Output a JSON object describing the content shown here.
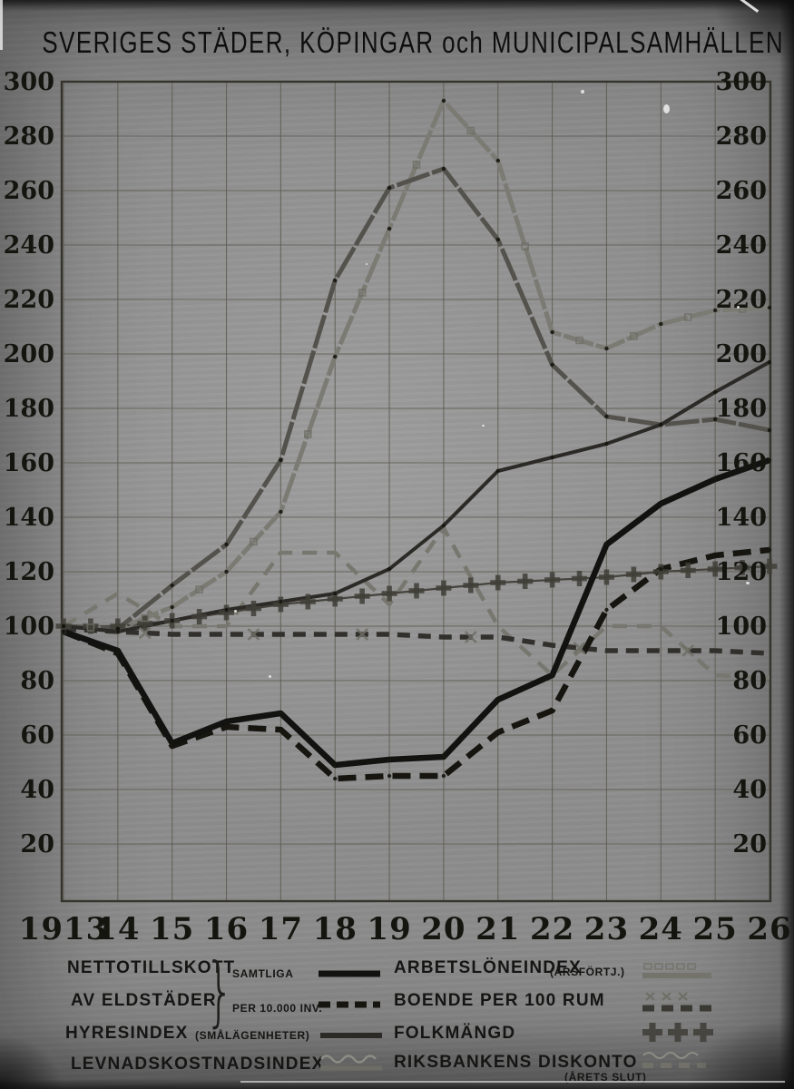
{
  "title": "SVERIGES STÄDER, KÖPINGAR och MUNICIPALSAMHÄLLEN",
  "chart_data": {
    "type": "line",
    "title": "SVERIGES STÄDER, KÖPINGAR och MUNICIPALSAMHÄLLEN",
    "x_labels": [
      "1913",
      "14",
      "15",
      "16",
      "17",
      "18",
      "19",
      "20",
      "21",
      "22",
      "23",
      "24",
      "25",
      "26"
    ],
    "y_ticks": [
      300,
      280,
      260,
      240,
      220,
      200,
      180,
      160,
      140,
      120,
      100,
      80,
      60,
      40,
      20
    ],
    "ylim": [
      0,
      300
    ],
    "grid": "on",
    "index_base": 100,
    "series": [
      {
        "id": "riksbankens_diskonto",
        "name": "RIKSBANKENS DISKONTO (ÅRETS SLUT)",
        "style": "gray-dashed-wavy",
        "values": [
          100,
          112,
          100,
          100,
          127,
          127,
          108,
          136,
          100,
          82,
          100,
          100,
          82,
          81
        ]
      },
      {
        "id": "boende_per_100_rum",
        "name": "BOENDE PER 100 RUM",
        "style": "dark-dashed-x",
        "values": [
          99,
          98,
          97,
          97,
          97,
          97,
          97,
          96,
          96,
          93,
          91,
          91,
          91,
          90
        ]
      },
      {
        "id": "folkmangd",
        "name": "FOLKMÄNGD",
        "style": "plus-crosses",
        "values": [
          100,
          100,
          102,
          105,
          108,
          110,
          112,
          114,
          116,
          117,
          118,
          120,
          121,
          122
        ]
      },
      {
        "id": "arbetsloneindex",
        "name": "ARBETSLÖNEINDEX (ÅRSFÖRTJ.)",
        "style": "gray-solid-squares",
        "values": [
          100,
          99,
          107,
          120,
          142,
          199,
          246,
          293,
          271,
          208,
          202,
          211,
          216,
          217
        ]
      },
      {
        "id": "levnadskostnadsindex",
        "name": "LEVNADSKOSTNADSINDEX",
        "style": "gray-solid-wavy",
        "values": [
          100,
          99,
          115,
          130,
          161,
          227,
          261,
          268,
          242,
          196,
          177,
          174,
          176,
          172
        ]
      },
      {
        "id": "hyresindex",
        "name": "HYRESINDEX (SMÅLÄGENHETER)",
        "style": "dark-solid",
        "values": [
          100,
          98,
          102,
          106,
          109,
          112,
          121,
          137,
          157,
          162,
          167,
          174,
          186,
          197
        ]
      },
      {
        "id": "nettotillskott_per_10000",
        "name": "NETTOTILLSKOTT AV ELDSTÄDER, PER 10.000 INV.",
        "style": "black-dashed",
        "values": [
          98,
          90,
          56,
          63,
          62,
          44,
          45,
          45,
          61,
          69,
          106,
          121,
          126,
          128
        ]
      },
      {
        "id": "nettotillskott_samtliga",
        "name": "NETTOTILLSKOTT AV ELDSTÄDER, SAMTLIGA",
        "style": "black-solid",
        "values": [
          98,
          91,
          57,
          65,
          68,
          49,
          51,
          52,
          73,
          82,
          130,
          145,
          154,
          161
        ]
      }
    ]
  },
  "legend": {
    "left": [
      {
        "label": "NETTOTILLSKOTT",
        "symbol": "black-solid-line"
      },
      {
        "label": "AV ELDSTÄDER",
        "symbol": "black-dashed-line"
      },
      {
        "label": "HYRESINDEX",
        "note": "(SMÅLÄGENHETER)",
        "symbol": "dark-solid-line"
      },
      {
        "label": "LEVNADSKOSTNADSINDEX",
        "symbol": "wavy-gray-line"
      }
    ],
    "brace_top": "SAMTLIGA",
    "brace_bottom": "PER 10.000 INV.",
    "right": [
      {
        "label": "ARBETSLÖNEINDEX",
        "note": "(ÅRSFÖRTJ.)",
        "symbol": "squares-gray-line"
      },
      {
        "label": "BOENDE PER 100 RUM",
        "symbol": "x-dark-dashes"
      },
      {
        "label": "FOLKMÄNGD",
        "symbol": "plus-crosses"
      },
      {
        "label": "RIKSBANKENS DISKONTO",
        "note": "(ÅRETS SLUT)",
        "symbol": "wavy-gray-dashes"
      }
    ]
  },
  "colors": {
    "ink_black": "#121210",
    "ink_dark": "#2b2a26",
    "ink_gray": "#54524c",
    "ink_light_gray": "#7b7b74",
    "paper_gray": "#909090",
    "grid": "#5b594f"
  }
}
